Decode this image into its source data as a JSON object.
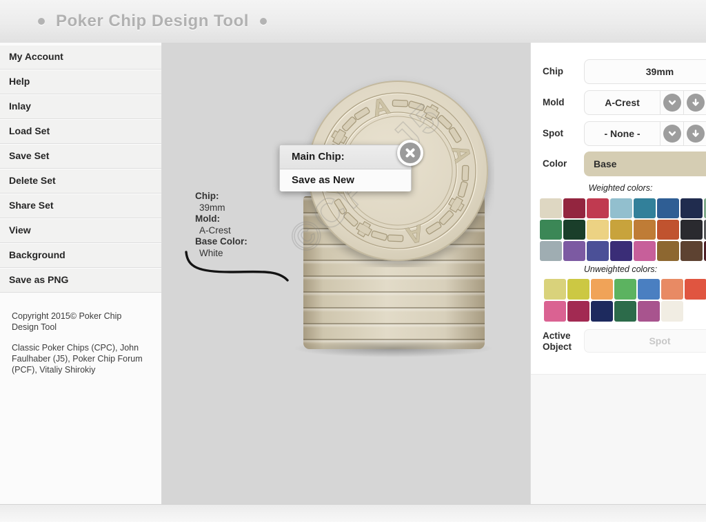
{
  "header": {
    "title": "Poker Chip Design Tool",
    "bullet": "•"
  },
  "sidebar": {
    "items": [
      {
        "label": "My Account"
      },
      {
        "label": "Help"
      },
      {
        "label": "Inlay"
      },
      {
        "label": "Load Set"
      },
      {
        "label": "Save Set"
      },
      {
        "label": "Delete Set"
      },
      {
        "label": "Share Set"
      },
      {
        "label": "View"
      },
      {
        "label": "Background"
      },
      {
        "label": "Save as PNG"
      }
    ],
    "copyright_line1": "Copyright 2015© Poker Chip Design Tool",
    "copyright_line2": "Classic Poker Chips (CPC), John Faulhaber (J5), Poker Chip Forum (PCF), Vitaliy Shirokiy"
  },
  "canvas": {
    "callout": {
      "chip_label": "Chip:",
      "chip_value": "39mm",
      "mold_label": "Mold:",
      "mold_value": "A-Crest",
      "base_color_label": "Base Color:",
      "base_color_value": "White"
    },
    "popup": {
      "title": "Main Chip:",
      "action": "Save as New"
    },
    "watermark": "©CPC·J5",
    "chip_glyph": "A",
    "colors": {
      "canvas_bg": "#d6d6d6",
      "chip_base": "#ded6c2",
      "stack_base": "#d8d0bb"
    }
  },
  "panel": {
    "chip_label": "Chip",
    "chip_value": "39mm",
    "mold_label": "Mold",
    "mold_value": "A-Crest",
    "spot_label": "Spot",
    "spot_value": "- None -",
    "color_label": "Color",
    "color_value": "Base",
    "base_swatch_color": "#d5cdb3",
    "weighted_title": "Weighted colors:",
    "unweighted_title": "Unweighted colors:",
    "weighted_colors": [
      [
        "#ded7c2",
        "#93253f",
        "#c03a50",
        "#92bfce",
        "#32809a",
        "#2f5e94",
        "#202c4e",
        "#7fa98a"
      ],
      [
        "#3b8756",
        "#1a3e2a",
        "#ecd283",
        "#c8a33c",
        "#bf7c36",
        "#c0532f",
        "#2a2a2f",
        "#57585a"
      ],
      [
        "#9fadb2",
        "#7c5aa2",
        "#4b5097",
        "#3a2d77",
        "#c75f9a",
        "#8d6730",
        "#5d4231",
        "#4d2026"
      ]
    ],
    "unweighted_colors": [
      [
        "#d9d27b",
        "#ccc843",
        "#f0a358",
        "#5cb360",
        "#4a7fc1",
        "#e88a64",
        "#e05540",
        "#c24434"
      ],
      [
        "#da6292",
        "#a22a52",
        "#1d2a5e",
        "#2c6b4a",
        "#a8548e",
        "#f1ede3"
      ]
    ],
    "active_label": "Active Object",
    "active_value": "Spot"
  }
}
